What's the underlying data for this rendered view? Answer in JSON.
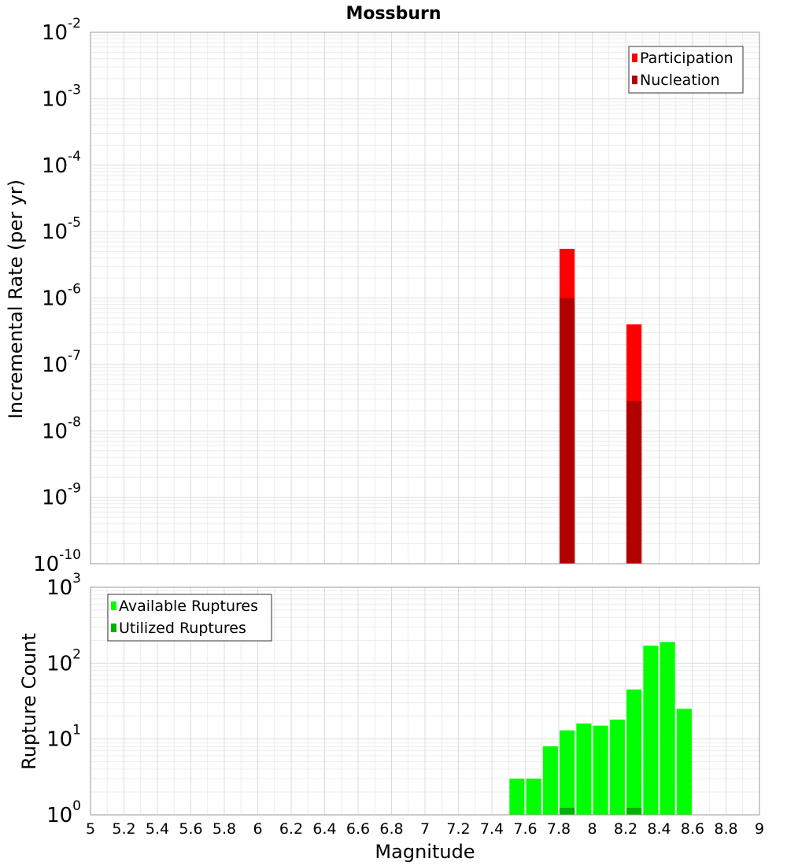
{
  "chart_data": [
    {
      "type": "bar",
      "title": "Mossburn",
      "ylabel": "Incremental Rate (per yr)",
      "yscale": "log",
      "ylim_exponents": [
        -10,
        -2
      ],
      "xlim": [
        5,
        9
      ],
      "legend_position": "top-right",
      "grid": true,
      "bar_width": 0.09,
      "series": [
        {
          "name": "Participation",
          "color": "#ff0000",
          "x": [
            7.85,
            8.25
          ],
          "values": [
            5.5e-06,
            4e-07
          ]
        },
        {
          "name": "Nucleation",
          "color": "#b20000",
          "x": [
            7.85,
            8.25
          ],
          "values": [
            1e-06,
            2.8e-08
          ]
        }
      ]
    },
    {
      "type": "bar",
      "xlabel": "Magnitude",
      "ylabel": "Rupture Count",
      "yscale": "log",
      "ylim_exponents": [
        0,
        3
      ],
      "xlim": [
        5,
        9
      ],
      "legend_position": "top-left",
      "grid": true,
      "bar_width": 0.09,
      "xticks": [
        "5",
        "5.2",
        "5.4",
        "5.6",
        "5.8",
        "6",
        "6.2",
        "6.4",
        "6.6",
        "6.8",
        "7",
        "7.2",
        "7.4",
        "7.6",
        "7.8",
        "8",
        "8.2",
        "8.4",
        "8.6",
        "8.8",
        "9"
      ],
      "series": [
        {
          "name": "Available Ruptures",
          "color": "#00ff00",
          "x": [
            7.15,
            7.55,
            7.65,
            7.75,
            7.85,
            7.95,
            8.05,
            8.15,
            8.25,
            8.35,
            8.45,
            8.55
          ],
          "values": [
            1,
            3,
            3,
            8,
            13,
            16,
            15,
            18,
            45,
            170,
            190,
            25
          ]
        },
        {
          "name": "Utilized Ruptures",
          "color": "#00b200",
          "x": [
            7.85,
            8.25
          ],
          "values": [
            1,
            1
          ]
        }
      ]
    }
  ]
}
